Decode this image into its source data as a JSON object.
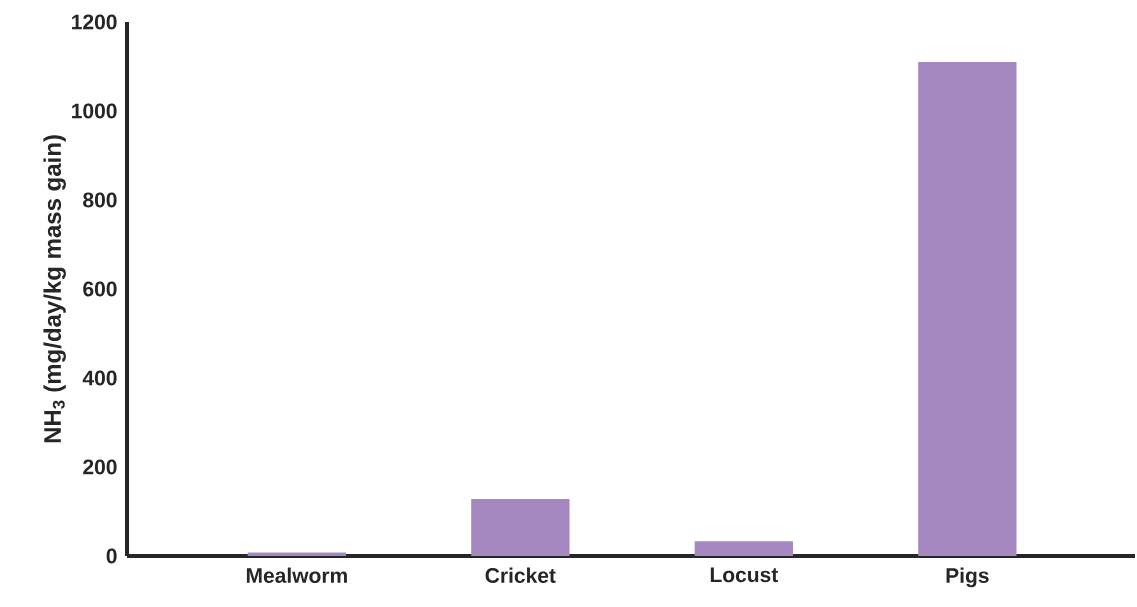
{
  "chart_data": {
    "type": "bar",
    "ylabel": "NH$_{3}$ (mg/day/kg mass gain)",
    "categories": [
      "Mealworm",
      "Cricket",
      "Locust",
      "Pigs"
    ],
    "values": [
      8,
      128,
      33,
      1110
    ],
    "color": "#a688c0",
    "ylim": [
      0,
      1200
    ],
    "yticks": [
      0,
      200,
      400,
      600,
      800,
      1000,
      1200
    ]
  }
}
